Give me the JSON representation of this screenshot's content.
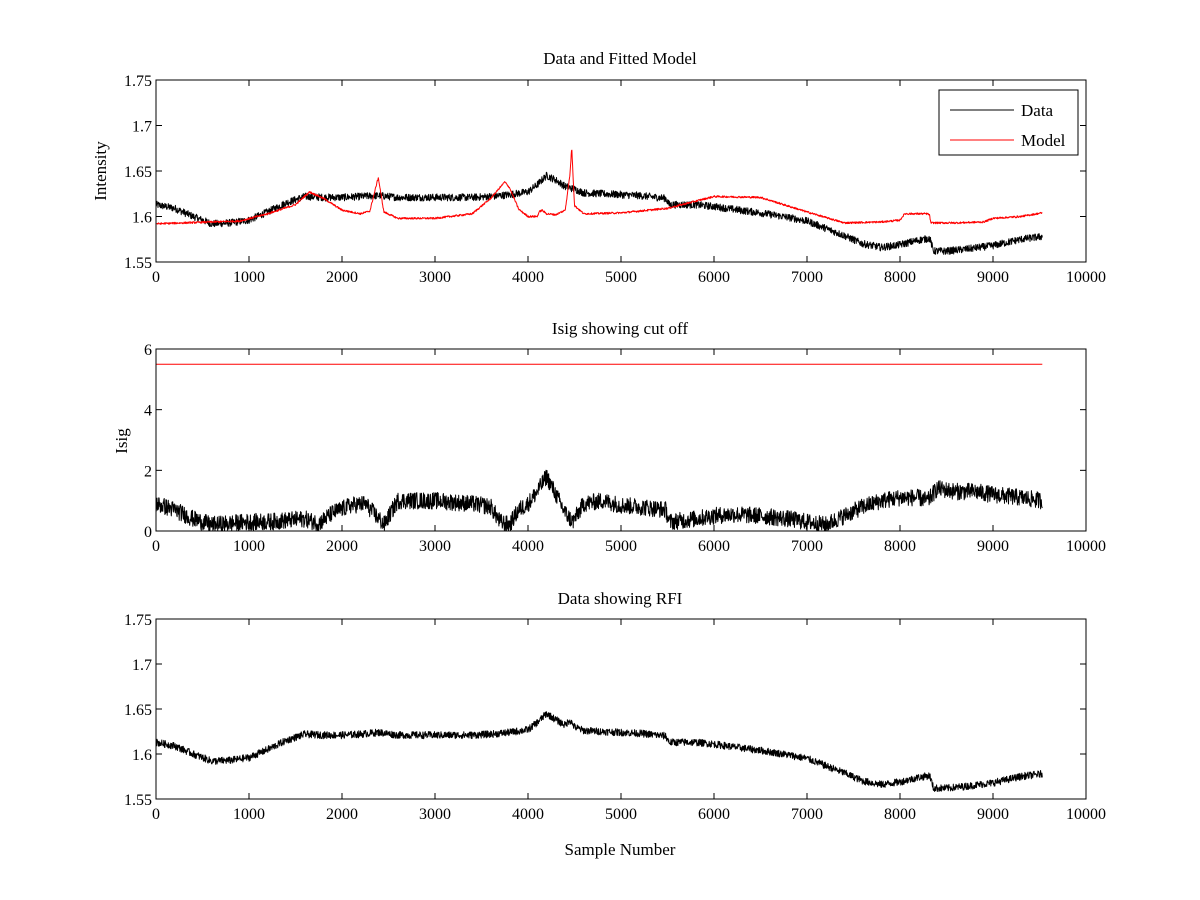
{
  "figure": {
    "background": "#ffffff"
  },
  "colors": {
    "data": "#000000",
    "model": "#ff0000",
    "axes": "#000000"
  },
  "chart_data": [
    {
      "type": "line",
      "title": "Data and Fitted Model",
      "xlabel": "",
      "ylabel": "Intensity",
      "xlim": [
        0,
        10000
      ],
      "ylim": [
        1.55,
        1.75
      ],
      "xticks": [
        0,
        1000,
        2000,
        3000,
        4000,
        5000,
        6000,
        7000,
        8000,
        9000,
        10000
      ],
      "yticks": [
        1.55,
        1.6,
        1.65,
        1.7,
        1.75
      ],
      "ytick_labels": [
        "1.55",
        "1.6",
        "1.65",
        "1.7",
        "1.75"
      ],
      "grid": false,
      "legend": {
        "position": "top-right",
        "entries": [
          "Data",
          "Model"
        ]
      },
      "series": [
        {
          "name": "Data",
          "color": "#000000",
          "noise": 0.004,
          "x": [
            0,
            200,
            400,
            600,
            800,
            1000,
            1200,
            1400,
            1600,
            1800,
            2000,
            2200,
            2400,
            2600,
            2800,
            3000,
            3200,
            3400,
            3600,
            3800,
            4000,
            4100,
            4200,
            4300,
            4400,
            4500,
            4600,
            4800,
            5000,
            5200,
            5480,
            5520,
            5800,
            6000,
            6200,
            6500,
            6800,
            7000,
            7200,
            7400,
            7600,
            7800,
            8000,
            8200,
            8320,
            8360,
            8500,
            8700,
            9000,
            9300,
            9530
          ],
          "y": [
            1.613,
            1.609,
            1.6,
            1.592,
            1.593,
            1.596,
            1.605,
            1.615,
            1.622,
            1.621,
            1.621,
            1.622,
            1.623,
            1.621,
            1.621,
            1.621,
            1.621,
            1.621,
            1.622,
            1.624,
            1.627,
            1.635,
            1.645,
            1.64,
            1.633,
            1.63,
            1.626,
            1.625,
            1.624,
            1.623,
            1.62,
            1.613,
            1.613,
            1.611,
            1.608,
            1.604,
            1.599,
            1.595,
            1.587,
            1.579,
            1.57,
            1.566,
            1.569,
            1.574,
            1.576,
            1.562,
            1.562,
            1.564,
            1.568,
            1.575,
            1.578
          ]
        },
        {
          "name": "Model",
          "color": "#ff0000",
          "noise": 0.001,
          "x": [
            0,
            300,
            600,
            900,
            1200,
            1500,
            1650,
            1800,
            2000,
            2200,
            2300,
            2390,
            2450,
            2600,
            3000,
            3400,
            3600,
            3750,
            3800,
            3900,
            4000,
            4100,
            4120,
            4150,
            4200,
            4300,
            4400,
            4450,
            4470,
            4500,
            4600,
            5000,
            5500,
            6000,
            6500,
            7000,
            7400,
            7800,
            8000,
            8050,
            8300,
            8320,
            8330,
            8600,
            8900,
            9000,
            9300,
            9530
          ],
          "y": [
            1.592,
            1.593,
            1.594,
            1.595,
            1.603,
            1.613,
            1.627,
            1.62,
            1.607,
            1.603,
            1.606,
            1.643,
            1.605,
            1.598,
            1.598,
            1.603,
            1.62,
            1.638,
            1.632,
            1.608,
            1.6,
            1.6,
            1.605,
            1.607,
            1.603,
            1.602,
            1.607,
            1.645,
            1.676,
            1.612,
            1.603,
            1.604,
            1.609,
            1.622,
            1.621,
            1.605,
            1.593,
            1.594,
            1.596,
            1.603,
            1.603,
            1.601,
            1.593,
            1.593,
            1.594,
            1.598,
            1.6,
            1.604
          ]
        }
      ]
    },
    {
      "type": "line",
      "title": "Isig showing cut off",
      "xlabel": "",
      "ylabel": "Isig",
      "xlim": [
        0,
        10000
      ],
      "ylim": [
        0,
        6
      ],
      "xticks": [
        0,
        1000,
        2000,
        3000,
        4000,
        5000,
        6000,
        7000,
        8000,
        9000,
        10000
      ],
      "yticks": [
        0,
        2,
        4,
        6
      ],
      "ytick_labels": [
        "0",
        "2",
        "4",
        "6"
      ],
      "grid": false,
      "series": [
        {
          "color": "#000000",
          "noise": 0.28,
          "x": [
            0,
            200,
            400,
            600,
            800,
            1000,
            1200,
            1400,
            1600,
            1750,
            1900,
            2100,
            2250,
            2400,
            2450,
            2600,
            2800,
            3000,
            3200,
            3400,
            3600,
            3700,
            3800,
            3900,
            4000,
            4100,
            4200,
            4300,
            4400,
            4480,
            4600,
            4800,
            5000,
            5200,
            5480,
            5520,
            5800,
            6000,
            6200,
            6500,
            6800,
            7000,
            7200,
            7400,
            7600,
            7800,
            8000,
            8200,
            8300,
            8400,
            8600,
            8800,
            9000,
            9300,
            9530
          ],
          "y": [
            0.9,
            0.7,
            0.4,
            0.2,
            0.25,
            0.3,
            0.3,
            0.35,
            0.4,
            0.25,
            0.6,
            0.85,
            0.9,
            0.4,
            0.2,
            1.0,
            1.0,
            1.0,
            0.95,
            0.9,
            0.8,
            0.3,
            0.2,
            0.7,
            0.9,
            1.3,
            1.8,
            1.2,
            0.6,
            0.3,
            0.9,
            1.0,
            0.85,
            0.8,
            0.7,
            0.3,
            0.4,
            0.5,
            0.55,
            0.5,
            0.4,
            0.3,
            0.2,
            0.5,
            0.8,
            1.0,
            1.1,
            1.1,
            1.0,
            1.4,
            1.3,
            1.3,
            1.2,
            1.1,
            1.0
          ]
        },
        {
          "color": "#ff0000",
          "noise": 0,
          "x": [
            0,
            9530
          ],
          "y": [
            5.5,
            5.5
          ]
        }
      ]
    },
    {
      "type": "line",
      "title": "Data showing RFI",
      "xlabel": "Sample Number",
      "ylabel": "",
      "xlim": [
        0,
        10000
      ],
      "ylim": [
        1.55,
        1.75
      ],
      "xticks": [
        0,
        1000,
        2000,
        3000,
        4000,
        5000,
        6000,
        7000,
        8000,
        9000,
        10000
      ],
      "yticks": [
        1.55,
        1.6,
        1.65,
        1.7,
        1.75
      ],
      "ytick_labels": [
        "1.55",
        "1.6",
        "1.65",
        "1.7",
        "1.75"
      ],
      "grid": false,
      "series": [
        {
          "color": "#000000",
          "noise": 0.004,
          "x": [
            0,
            200,
            400,
            600,
            800,
            1000,
            1200,
            1400,
            1600,
            1800,
            2000,
            2200,
            2400,
            2600,
            2800,
            3000,
            3200,
            3400,
            3600,
            3800,
            4000,
            4100,
            4200,
            4300,
            4400,
            4450,
            4500,
            4600,
            4800,
            5000,
            5200,
            5480,
            5520,
            5800,
            6000,
            6200,
            6500,
            6800,
            7000,
            7200,
            7400,
            7600,
            7800,
            8000,
            8200,
            8320,
            8360,
            8500,
            8700,
            9000,
            9300,
            9530
          ],
          "y": [
            1.613,
            1.609,
            1.6,
            1.592,
            1.593,
            1.596,
            1.605,
            1.615,
            1.622,
            1.621,
            1.621,
            1.622,
            1.624,
            1.621,
            1.621,
            1.621,
            1.621,
            1.621,
            1.622,
            1.624,
            1.627,
            1.635,
            1.645,
            1.638,
            1.632,
            1.638,
            1.63,
            1.626,
            1.625,
            1.624,
            1.623,
            1.62,
            1.613,
            1.613,
            1.611,
            1.608,
            1.604,
            1.599,
            1.595,
            1.587,
            1.579,
            1.57,
            1.566,
            1.569,
            1.574,
            1.576,
            1.562,
            1.562,
            1.564,
            1.568,
            1.575,
            1.578
          ]
        }
      ]
    }
  ]
}
